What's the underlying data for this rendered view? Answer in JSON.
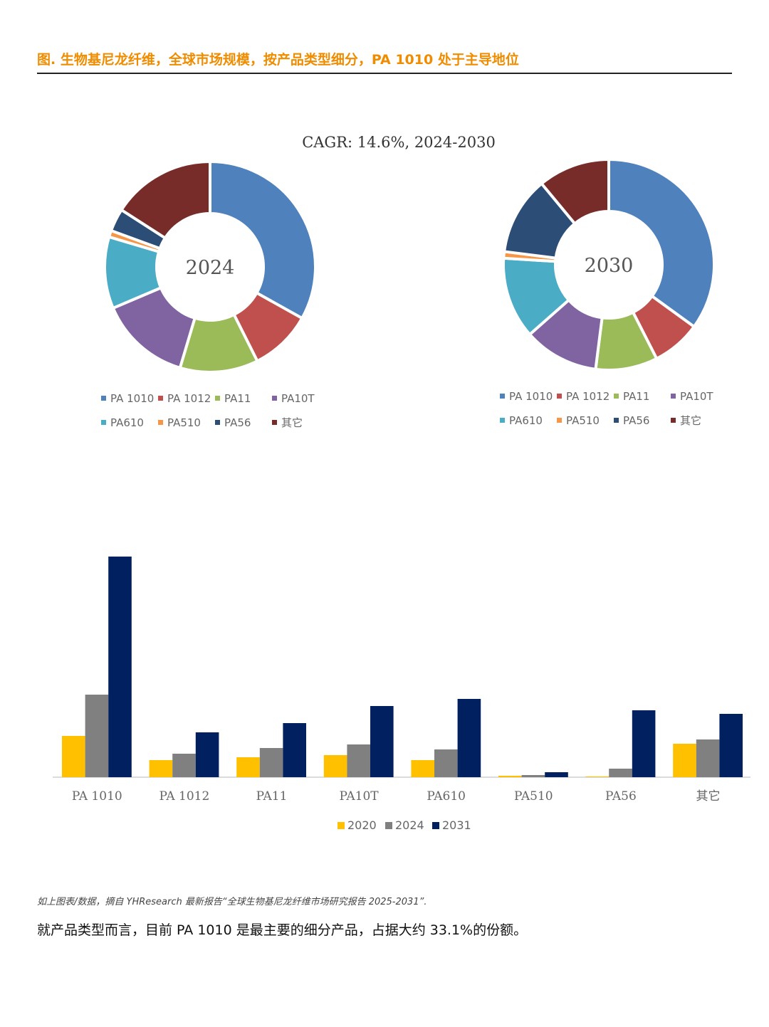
{
  "title": "图.   生物基尼龙纤维，全球市场规模，按产品类型细分，PA 1010 处于主导地位",
  "cagr_text": "CAGR:   14.6%, 2024-2030",
  "source_note": "如上图表/数据，摘自 YHResearch 最新报告“全球生物基尼龙纤维市场研究报告 2025-2031”.",
  "summary_text": "就产品类型而言，目前 PA 1010 是最主要的细分产品，占据大约 33.1%的份额。",
  "colors": {
    "PA 1010": "#4f81bd",
    "PA 1012": "#c0504d",
    "PA11": "#9bbb59",
    "PA10T": "#8064a2",
    "PA610": "#4bacc6",
    "PA510": "#f79646",
    "PA56": "#2c4d75",
    "其它": "#772c2a",
    "2020": "#ffc000",
    "2024": "#808080",
    "2031": "#002060"
  },
  "chart_data": [
    {
      "type": "pie",
      "center_label": "2024",
      "categories": [
        "PA 1010",
        "PA 1012",
        "PA11",
        "PA10T",
        "PA610",
        "PA510",
        "PA56",
        "其它"
      ],
      "values": [
        33.1,
        9.5,
        12.0,
        14.0,
        11.0,
        1.0,
        3.5,
        15.9
      ]
    },
    {
      "type": "pie",
      "center_label": "2030",
      "categories": [
        "PA 1010",
        "PA 1012",
        "PA11",
        "PA10T",
        "PA610",
        "PA510",
        "PA56",
        "其它"
      ],
      "values": [
        35.0,
        7.5,
        9.5,
        11.5,
        12.5,
        1.0,
        12.0,
        11.0
      ]
    },
    {
      "type": "bar",
      "categories": [
        "PA 1010",
        "PA 1012",
        "PA11",
        "PA10T",
        "PA610",
        "PA510",
        "PA56",
        "其它"
      ],
      "series": [
        {
          "name": "2020",
          "values": [
            58,
            24,
            28,
            31,
            24,
            2,
            1,
            47
          ]
        },
        {
          "name": "2024",
          "values": [
            116,
            33,
            41,
            46,
            39,
            3,
            12,
            53
          ]
        },
        {
          "name": "2031",
          "values": [
            310,
            63,
            76,
            100,
            110,
            7,
            94,
            89
          ]
        }
      ],
      "ylim": [
        0,
        320
      ]
    }
  ]
}
